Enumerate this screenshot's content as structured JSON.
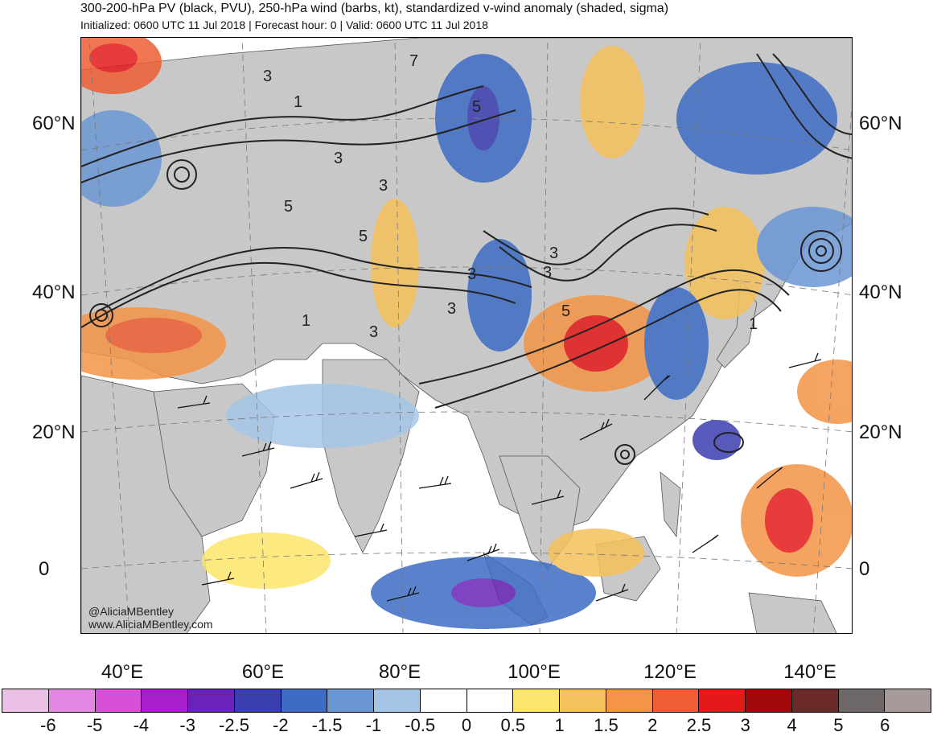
{
  "title": "300-200-hPa PV (black, PVU), 250-hPa wind (barbs, kt), standardized v-wind anomaly (shaded, sigma)",
  "subtitle": "Initialized: 0600 UTC 11 Jul 2018 | Forecast hour: 0 | Valid: 0600 UTC 11 Jul 2018",
  "lat_labels": {
    "lat60_left": "60°N",
    "lat40_left": "40°N",
    "lat20_left": "20°N",
    "lat0_left": "0",
    "lat60_right": "60°N",
    "lat40_right": "40°N",
    "lat20_right": "20°N",
    "lat0_right": "0"
  },
  "lon_labels": [
    "40°E",
    "60°E",
    "80°E",
    "100°E",
    "120°E",
    "140°E"
  ],
  "contour_labels": [
    "3",
    "1",
    "7",
    "5",
    "3",
    "5",
    "3",
    "5",
    "3",
    "3",
    "5",
    "3",
    "1",
    "3",
    "1",
    "3"
  ],
  "credit": {
    "handle": "@AliciaMBentley",
    "site": "www.AliciaMBentley.com"
  },
  "colorbar": {
    "colors": [
      "#ebbfe6",
      "#e387e3",
      "#d64fd9",
      "#a81ecf",
      "#6a23b8",
      "#3b3eb0",
      "#3d6cc4",
      "#6b96d4",
      "#a4c6e6",
      "#ffffff",
      "#ffffff",
      "#fbe56a",
      "#f5c15a",
      "#f49446",
      "#ee5f35",
      "#e41a1a",
      "#a3080c",
      "#6b2a2a",
      "#6e6767",
      "#a79a9a"
    ],
    "labels": [
      "-6",
      "-5",
      "-4",
      "-3",
      "-2.5",
      "-2",
      "-1.5",
      "-1",
      "-0.5",
      "0",
      "0.5",
      "1",
      "1.5",
      "2",
      "2.5",
      "3",
      "4",
      "5",
      "6"
    ]
  },
  "map_colors": {
    "land": "#c8c8c8",
    "ocean": "#ffffff",
    "contour": "#222222",
    "coast": "#555555"
  }
}
